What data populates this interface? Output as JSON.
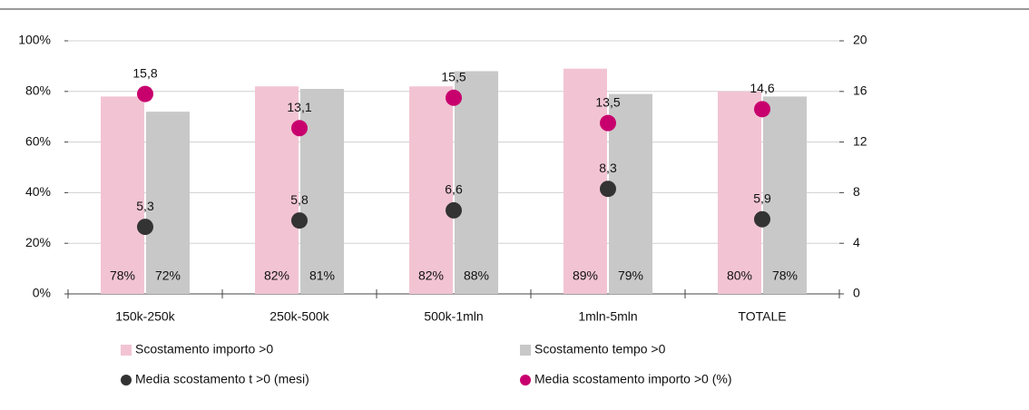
{
  "chart_data": {
    "type": "bar",
    "categories": [
      "150k-250k",
      "250k-500k",
      "500k-1mln",
      "1mln-5mln",
      "TOTALE"
    ],
    "series": [
      {
        "name": "Scostamento importo >0",
        "color": "#f2c4d3",
        "values": [
          78,
          82,
          82,
          89,
          80
        ],
        "value_labels": [
          "78%",
          "82%",
          "82%",
          "89%",
          "80%"
        ]
      },
      {
        "name": "Scostamento tempo >0",
        "color": "#c8c8c8",
        "values": [
          72,
          81,
          88,
          79,
          78
        ],
        "value_labels": [
          "72%",
          "81%",
          "88%",
          "79%",
          "78%"
        ]
      },
      {
        "name": "Media scostamento t >0 (mesi)",
        "color": "#333333",
        "axis": "y2",
        "values": [
          5.3,
          5.8,
          6.6,
          8.3,
          5.9
        ],
        "value_labels": [
          "5,3",
          "5,8",
          "6,6",
          "8,3",
          "5,9"
        ]
      },
      {
        "name": "Media scostamento importo >0 (%)",
        "color": "#c8006e",
        "axis": "y2",
        "values": [
          15.8,
          13.1,
          15.5,
          13.5,
          14.6
        ],
        "value_labels": [
          "15,8",
          "13,1",
          "15,5",
          "13,5",
          "14,6"
        ]
      }
    ],
    "ylim": [
      0,
      100
    ],
    "yticks": [
      {
        "value": 0,
        "label": "0%"
      },
      {
        "value": 20,
        "label": "20%"
      },
      {
        "value": 40,
        "label": "40%"
      },
      {
        "value": 60,
        "label": "60%"
      },
      {
        "value": 80,
        "label": "80%"
      },
      {
        "value": 100,
        "label": "100%"
      }
    ],
    "y2lim": [
      0,
      20
    ],
    "y2ticks": [
      0,
      4,
      8,
      12,
      16,
      20
    ],
    "grid": true
  }
}
